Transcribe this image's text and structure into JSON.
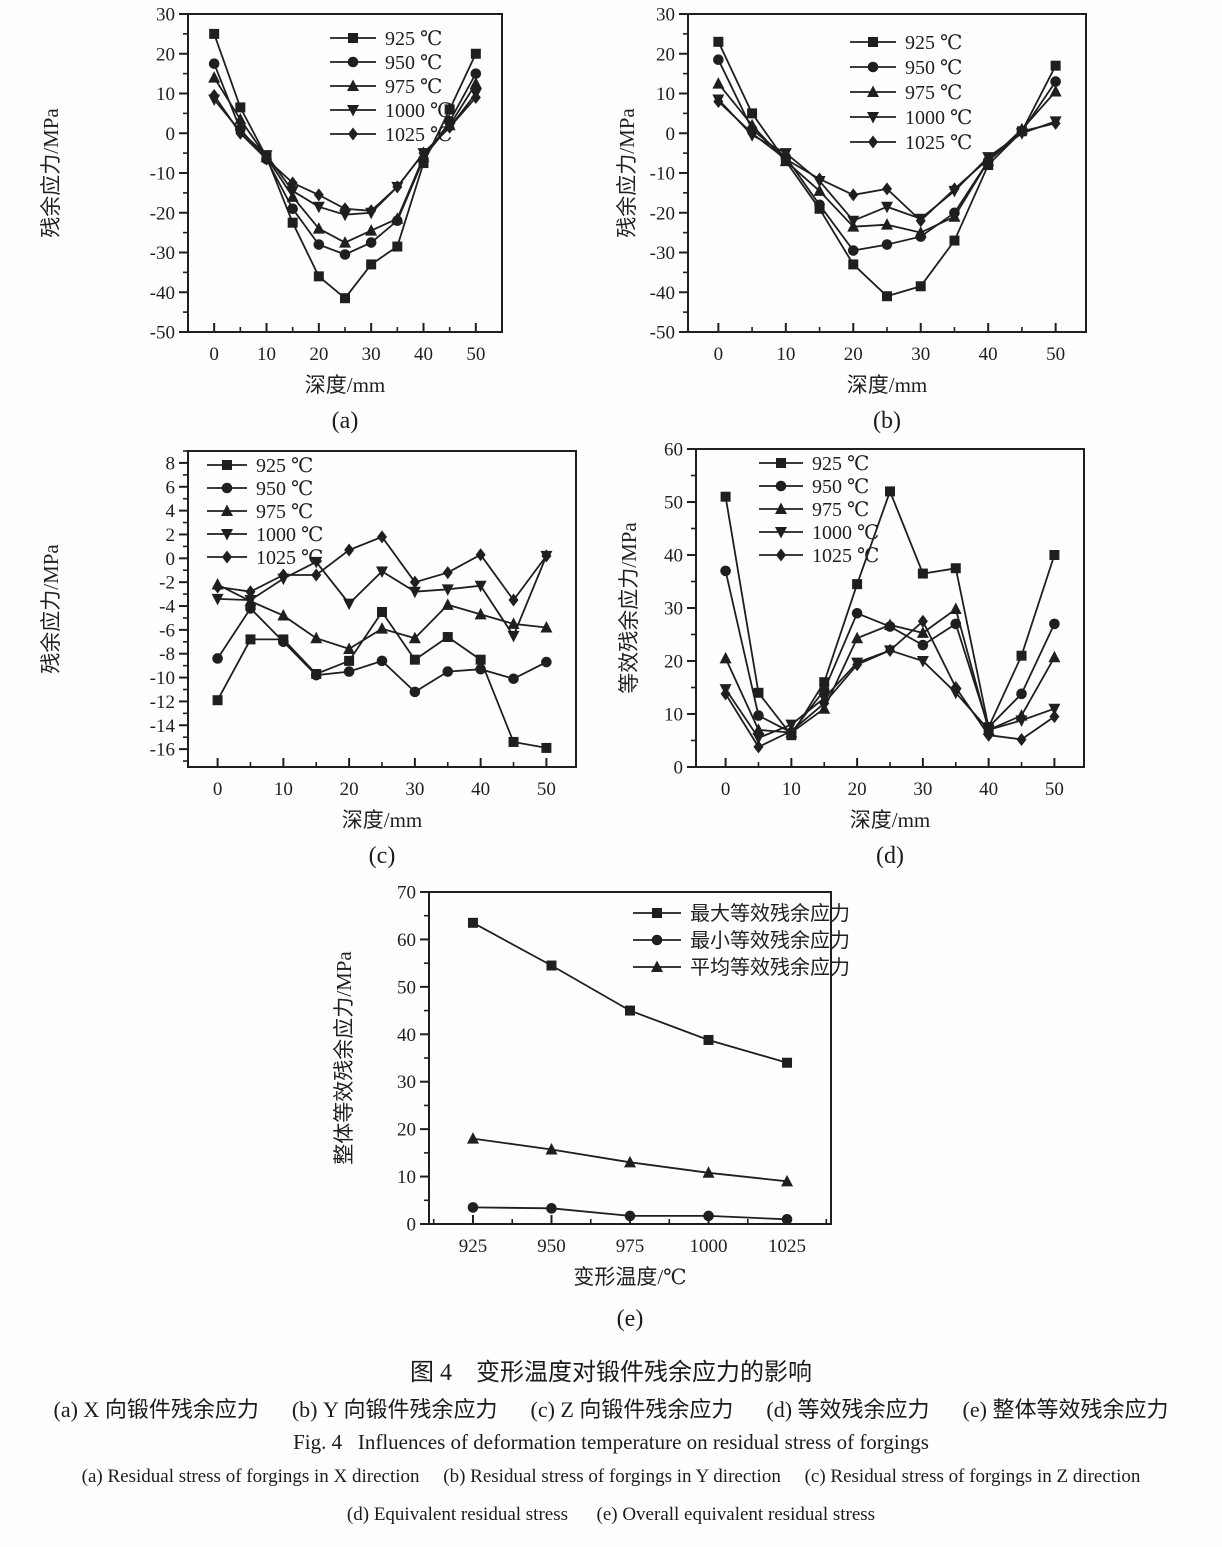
{
  "style": {
    "ink": "#1f1f1f",
    "background": "#fefefe"
  },
  "figure": {
    "caption_cn_title": "图 4　变形温度对锻件残余应力的影响",
    "caption_cn_sub": "(a) X 向锻件残余应力　  (b) Y 向锻件残余应力　  (c) Z 向锻件残余应力　  (d) 等效残余应力　  (e) 整体等效残余应力",
    "caption_en_title": "Fig. 4   Influences of deformation temperature on residual stress of forgings",
    "caption_en_sub1": "(a) Residual stress of forgings in X direction     (b) Residual stress of forgings in Y direction     (c) Residual stress of forgings in Z direction",
    "caption_en_sub2": "(d) Equivalent residual stress      (e) Overall equivalent residual stress"
  },
  "chart_data": [
    {
      "type": "line",
      "sublabel": "(a)",
      "xlabel": "深度/mm",
      "ylabel": "残余应力/MPa",
      "xlim": [
        -5,
        55
      ],
      "ylim": [
        -50,
        30
      ],
      "xticks": [
        0,
        10,
        20,
        30,
        40,
        50
      ],
      "xminor": 5,
      "yticks": [
        -50,
        -40,
        -30,
        -20,
        -10,
        0,
        10,
        20,
        30
      ],
      "yminor": 5,
      "x": [
        0,
        5,
        10,
        15,
        20,
        25,
        30,
        35,
        40,
        45,
        50
      ],
      "legend_position": "top-right",
      "series": [
        {
          "name": "925 ℃",
          "marker": "square",
          "values": [
            25,
            6.5,
            -6,
            -22.5,
            -36,
            -41.5,
            -33,
            -28.5,
            -7.5,
            6,
            20
          ]
        },
        {
          "name": "950 ℃",
          "marker": "circle",
          "values": [
            17.5,
            1,
            -6.5,
            -19,
            -28,
            -30.5,
            -27.5,
            -22,
            -6.5,
            3,
            15
          ]
        },
        {
          "name": "975 ℃",
          "marker": "triangle-up",
          "values": [
            14,
            3.5,
            -6,
            -16,
            -24,
            -27.5,
            -24.5,
            -21.5,
            -6,
            2,
            12.5
          ]
        },
        {
          "name": "1000 ℃",
          "marker": "triangle-down",
          "values": [
            8.5,
            0.5,
            -5.5,
            -14.5,
            -18.5,
            -20.5,
            -20,
            -13.5,
            -5,
            1.5,
            10
          ]
        },
        {
          "name": "1025 ℃",
          "marker": "diamond",
          "values": [
            9.5,
            0,
            -6.5,
            -12.5,
            -15.5,
            -19,
            -19.5,
            -13.5,
            -5,
            1.5,
            9
          ]
        }
      ]
    },
    {
      "type": "line",
      "sublabel": "(b)",
      "xlabel": "深度/mm",
      "ylabel": "残余应力/MPa",
      "xlim": [
        -4.5,
        54.5
      ],
      "ylim": [
        -50,
        30
      ],
      "xticks": [
        0,
        10,
        20,
        30,
        40,
        50
      ],
      "xminor": 5,
      "yticks": [
        -50,
        -40,
        -30,
        -20,
        -10,
        0,
        10,
        20,
        30
      ],
      "yminor": 5,
      "x": [
        0,
        5,
        10,
        15,
        20,
        25,
        30,
        35,
        40,
        45,
        50
      ],
      "legend_position": "top-right",
      "series": [
        {
          "name": "925 ℃",
          "marker": "square",
          "values": [
            23,
            5,
            -7,
            -19,
            -33,
            -41,
            -38.5,
            -27,
            -8,
            0.5,
            17
          ]
        },
        {
          "name": "950 ℃",
          "marker": "circle",
          "values": [
            18.5,
            1,
            -6,
            -18,
            -29.5,
            -28,
            -26,
            -20,
            -7,
            0.5,
            13
          ]
        },
        {
          "name": "975 ℃",
          "marker": "triangle-up",
          "values": [
            12.5,
            2,
            -7,
            -14.5,
            -23.5,
            -23,
            -25,
            -21,
            -7,
            1,
            10.5
          ]
        },
        {
          "name": "1000 ℃",
          "marker": "triangle-down",
          "values": [
            8.5,
            -0.5,
            -5,
            -12,
            -22,
            -18.5,
            -21.5,
            -14.5,
            -6,
            0,
            3
          ]
        },
        {
          "name": "1025 ℃",
          "marker": "diamond",
          "values": [
            8,
            0,
            -6.5,
            -11.5,
            -15.5,
            -14,
            -22,
            -14,
            -6.5,
            0.5,
            2.5
          ]
        }
      ]
    },
    {
      "type": "line",
      "sublabel": "(c)",
      "xlabel": "深度/mm",
      "ylabel": "残余应力/MPa",
      "xlim": [
        -4.5,
        54.5
      ],
      "ylim": [
        -17.5,
        9
      ],
      "xticks": [
        0,
        10,
        20,
        30,
        40,
        50
      ],
      "xminor": 5,
      "yticks": [
        -16,
        -14,
        -12,
        -10,
        -8,
        -6,
        -4,
        -2,
        0,
        2,
        4,
        6,
        8
      ],
      "yminor": 1,
      "x": [
        0,
        5,
        10,
        15,
        20,
        25,
        30,
        35,
        40,
        45,
        50
      ],
      "legend_position": "top-left",
      "series": [
        {
          "name": "925 ℃",
          "marker": "square",
          "values": [
            -11.9,
            -6.8,
            -6.8,
            -9.7,
            -8.6,
            -4.5,
            -8.5,
            -6.6,
            -8.5,
            -15.4,
            -15.9
          ]
        },
        {
          "name": "950 ℃",
          "marker": "circle",
          "values": [
            -8.4,
            -4.2,
            -7,
            -9.8,
            -9.5,
            -8.6,
            -11.2,
            -9.5,
            -9.3,
            -10.1,
            -8.7
          ]
        },
        {
          "name": "975 ℃",
          "marker": "triangle-up",
          "values": [
            -2.2,
            -3.6,
            -4.8,
            -6.7,
            -7.6,
            -5.9,
            -6.7,
            -3.9,
            -4.7,
            -5.5,
            -5.8
          ]
        },
        {
          "name": "1000 ℃",
          "marker": "triangle-down",
          "values": [
            -3.4,
            -3.5,
            -1.7,
            -0.3,
            -3.8,
            -1.1,
            -2.8,
            -2.6,
            -2.3,
            -6.5,
            0.2
          ]
        },
        {
          "name": "1025 ℃",
          "marker": "diamond",
          "values": [
            -2.4,
            -2.8,
            -1.4,
            -1.4,
            0.7,
            1.8,
            -2,
            -1.2,
            0.3,
            -3.5,
            0.2
          ]
        }
      ]
    },
    {
      "type": "line",
      "sublabel": "(d)",
      "xlabel": "深度/mm",
      "ylabel": "等效残余应力/MPa",
      "xlim": [
        -4.5,
        54.5
      ],
      "ylim": [
        0,
        60
      ],
      "xticks": [
        0,
        10,
        20,
        30,
        40,
        50
      ],
      "xminor": 5,
      "yticks": [
        0,
        10,
        20,
        30,
        40,
        50,
        60
      ],
      "yminor": 5,
      "x": [
        0,
        5,
        10,
        15,
        20,
        25,
        30,
        35,
        40,
        45,
        50
      ],
      "legend_position": "top-center",
      "series": [
        {
          "name": "925 ℃",
          "marker": "square",
          "values": [
            51,
            14,
            6,
            16,
            34.5,
            52,
            36.5,
            37.5,
            7.5,
            21,
            40
          ]
        },
        {
          "name": "950 ℃",
          "marker": "circle",
          "values": [
            37,
            9.7,
            6.5,
            14.5,
            29,
            26.5,
            23,
            27,
            7.5,
            13.8,
            27
          ]
        },
        {
          "name": "975 ℃",
          "marker": "triangle-up",
          "values": [
            20.5,
            7,
            6.5,
            11,
            24.3,
            26.8,
            25.3,
            29.8,
            7,
            9.7,
            20.7
          ]
        },
        {
          "name": "1000 ℃",
          "marker": "triangle-down",
          "values": [
            14.7,
            5.5,
            8,
            13,
            19.7,
            22,
            20,
            14,
            7,
            8.8,
            11
          ]
        },
        {
          "name": "1025 ℃",
          "marker": "diamond",
          "values": [
            13.8,
            3.8,
            6.8,
            12,
            19.3,
            22,
            27.5,
            15,
            6,
            5.2,
            9.5
          ]
        }
      ]
    },
    {
      "type": "line",
      "sublabel": "(e)",
      "xlabel": "变形温度/℃",
      "ylabel": "整体等效残余应力/MPa",
      "xlim": [
        911,
        1039
      ],
      "ylim": [
        0,
        70
      ],
      "xticks": [
        925,
        950,
        975,
        1000,
        1025
      ],
      "xminor": 12.5,
      "yticks": [
        0,
        10,
        20,
        30,
        40,
        50,
        60,
        70
      ],
      "yminor": 5,
      "x": [
        925,
        950,
        975,
        1000,
        1025
      ],
      "legend_position": "top-right",
      "series": [
        {
          "name": "最大等效残余应力",
          "marker": "square",
          "values": [
            63.5,
            54.5,
            45,
            38.8,
            34
          ]
        },
        {
          "name": "最小等效残余应力",
          "marker": "circle",
          "values": [
            3.5,
            3.3,
            1.7,
            1.7,
            1
          ]
        },
        {
          "name": "平均等效残余应力",
          "marker": "triangle-up",
          "values": [
            18,
            15.7,
            13,
            10.8,
            9
          ]
        }
      ]
    }
  ]
}
